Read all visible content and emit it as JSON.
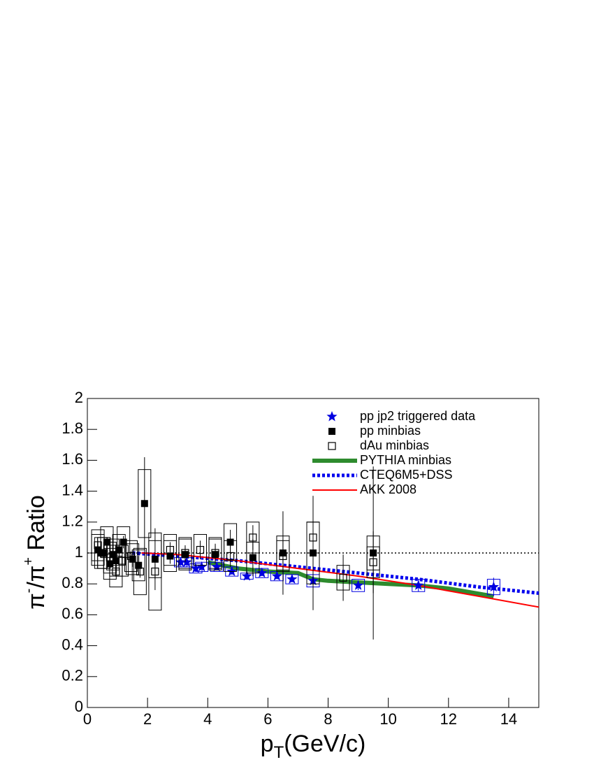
{
  "chart_data": {
    "type": "scatter",
    "xlabel": [
      "p",
      "T",
      "(GeV/c)"
    ],
    "ylabel": [
      "π",
      "-",
      "/π",
      "+",
      " Ratio"
    ],
    "xlim": [
      0,
      15
    ],
    "ylim": [
      0,
      2
    ],
    "xticks": [
      0,
      2,
      4,
      6,
      8,
      10,
      12,
      14
    ],
    "yticks": [
      0,
      0.2,
      0.4,
      0.6,
      0.8,
      1,
      1.2,
      1.4,
      1.6,
      1.8,
      2
    ],
    "reference_line": 1,
    "legend": "upper right",
    "series": [
      {
        "name": "pp jp2 triggered data",
        "type": "scatter",
        "marker": "star",
        "color": "#0000e0",
        "x": [
          3.1,
          3.3,
          3.6,
          3.8,
          4.3,
          4.8,
          5.3,
          5.8,
          6.3,
          6.8,
          7.5,
          9.0,
          11.0,
          13.5
        ],
        "values": [
          0.94,
          0.94,
          0.9,
          0.91,
          0.91,
          0.88,
          0.85,
          0.87,
          0.85,
          0.83,
          0.82,
          0.79,
          0.79,
          0.78
        ],
        "errors": [
          0.02,
          0.02,
          0.02,
          0.02,
          0.02,
          0.02,
          0.02,
          0.02,
          0.02,
          0.02,
          0.03,
          0.03,
          0.04,
          0.06
        ],
        "sys": [
          0.03,
          0.03,
          0.03,
          0.03,
          0.03,
          0.03,
          0.02,
          0.03,
          0.03,
          0.03,
          0.04,
          0.04,
          0.04,
          0.05
        ]
      },
      {
        "name": "pp minbias",
        "type": "scatter",
        "marker": "square",
        "color": "#000000",
        "x": [
          0.35,
          0.45,
          0.55,
          0.65,
          0.75,
          0.85,
          0.95,
          1.05,
          1.2,
          1.5,
          1.7,
          1.9,
          2.25,
          2.75,
          3.25,
          4.25,
          4.75,
          5.5,
          6.5,
          7.5,
          9.5
        ],
        "values": [
          1.02,
          1.0,
          1.0,
          1.07,
          0.93,
          0.99,
          0.95,
          1.02,
          1.07,
          0.96,
          0.92,
          1.32,
          0.96,
          0.98,
          0.99,
          0.99,
          1.07,
          0.97,
          1.0,
          1.0,
          1.0
        ],
        "errors": [
          0.03,
          0.03,
          0.03,
          0.03,
          0.03,
          0.03,
          0.03,
          0.03,
          0.04,
          0.05,
          0.06,
          0.3,
          0.2,
          0.05,
          0.05,
          0.06,
          0.08,
          0.12,
          0.27,
          0.37,
          0.56
        ],
        "sys": [
          0.1,
          0.1,
          0.1,
          0.1,
          0.1,
          0.1,
          0.1,
          0.1,
          0.1,
          0.1,
          0.1,
          0.22,
          0.12,
          0.1,
          0.1,
          0.1,
          0.12,
          0.1,
          0.11,
          0.2,
          0.11
        ]
      },
      {
        "name": "dAu minbias",
        "type": "scatter",
        "marker": "open-square",
        "color": "#000000",
        "x": [
          0.35,
          0.55,
          0.75,
          0.95,
          1.15,
          1.45,
          1.75,
          2.25,
          2.75,
          3.25,
          3.75,
          4.25,
          4.75,
          5.5,
          6.5,
          7.5,
          8.5,
          9.5
        ],
        "values": [
          1.05,
          1.0,
          0.97,
          0.88,
          0.95,
          0.98,
          0.88,
          0.88,
          1.02,
          1.0,
          1.02,
          1.0,
          0.98,
          1.1,
          0.98,
          1.1,
          0.84,
          0.94
        ],
        "errors": [
          0.03,
          0.03,
          0.03,
          0.03,
          0.03,
          0.03,
          0.04,
          0.05,
          0.05,
          0.05,
          0.06,
          0.06,
          0.07,
          0.08,
          0.1,
          0.1,
          0.15,
          0.2
        ],
        "sys": [
          0.1,
          0.1,
          0.1,
          0.1,
          0.1,
          0.1,
          0.15,
          0.25,
          0.1,
          0.1,
          0.1,
          0.1,
          0.1,
          0.1,
          0.1,
          0.1,
          0.08,
          0.1
        ]
      },
      {
        "name": "PYTHIA minbias",
        "type": "line",
        "style": "solid",
        "width": 6,
        "color": "#2e8b2e",
        "x": [
          4,
          5,
          6,
          7,
          7.5,
          8,
          9,
          10,
          11,
          12,
          13.5
        ],
        "values": [
          0.94,
          0.9,
          0.88,
          0.87,
          0.83,
          0.82,
          0.81,
          0.8,
          0.79,
          0.77,
          0.72
        ]
      },
      {
        "name": "CTEQ6M5+DSS",
        "type": "line",
        "style": "dotted",
        "width": 5,
        "color": "#0000ee",
        "x": [
          1.5,
          3,
          5,
          7,
          9,
          11,
          13,
          15
        ],
        "values": [
          1.0,
          0.98,
          0.95,
          0.91,
          0.87,
          0.83,
          0.78,
          0.74
        ]
      },
      {
        "name": "AKK 2008",
        "type": "line",
        "style": "solid",
        "width": 2,
        "color": "#ff0000",
        "x": [
          1.8,
          3,
          5,
          7,
          9,
          11,
          13,
          15
        ],
        "values": [
          1.0,
          0.99,
          0.95,
          0.9,
          0.85,
          0.79,
          0.72,
          0.65
        ]
      }
    ]
  }
}
